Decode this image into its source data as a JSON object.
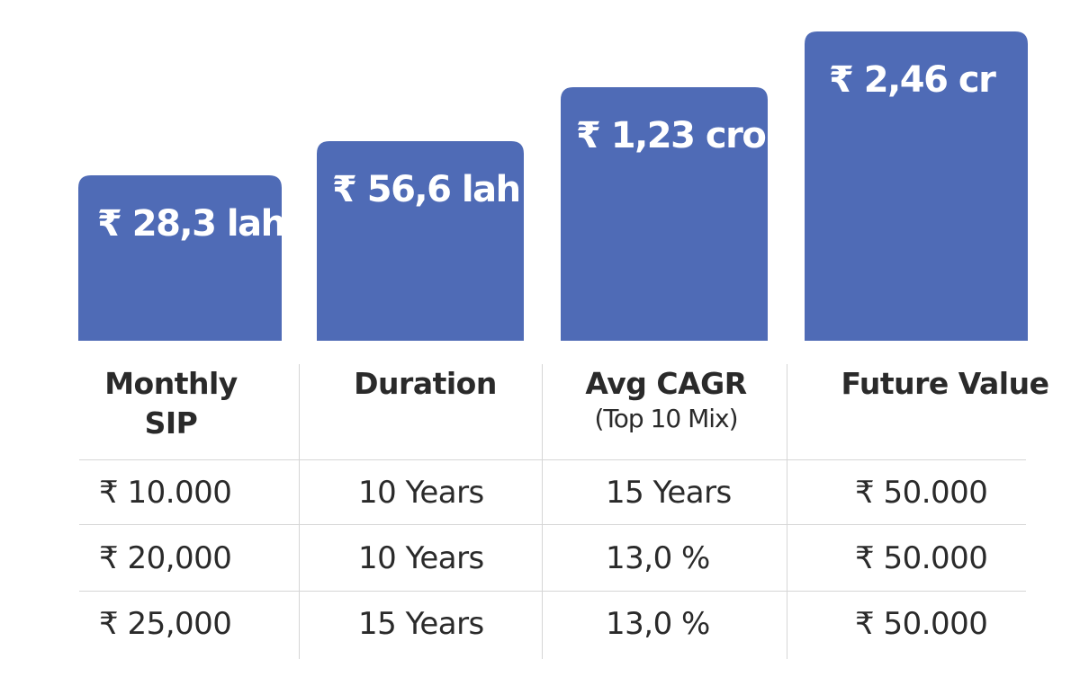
{
  "chart_data": {
    "type": "bar",
    "categories": [
      "Monthly SIP",
      "Duration",
      "Avg CAGR",
      "Future Value"
    ],
    "values": [
      28.3,
      56.6,
      123,
      246
    ],
    "unit": "lakh",
    "data_labels": [
      "₹ 28,3 lah",
      "₹ 56,6 lah",
      "₹ 1,23 cro",
      "₹ 2,46 cr"
    ],
    "bar_color": "#4f6bb6",
    "axes": "none",
    "grid": false
  },
  "table": {
    "headers": [
      {
        "main": "Monthly\nSIP",
        "sub": ""
      },
      {
        "main": "Duration",
        "sub": ""
      },
      {
        "main": "Avg CAGR",
        "sub": "(Top 10 Mix)"
      },
      {
        "main": "Future Value",
        "sub": ""
      }
    ],
    "rows": [
      [
        "₹ 10.000",
        "10 Years",
        "15 Years",
        "₹ 50.000"
      ],
      [
        "₹ 20,000",
        "10 Years",
        "13,0 %",
        "₹ 50.000"
      ],
      [
        "₹ 25,000",
        "15 Years",
        "13,0 %",
        "₹ 50.000"
      ]
    ]
  }
}
